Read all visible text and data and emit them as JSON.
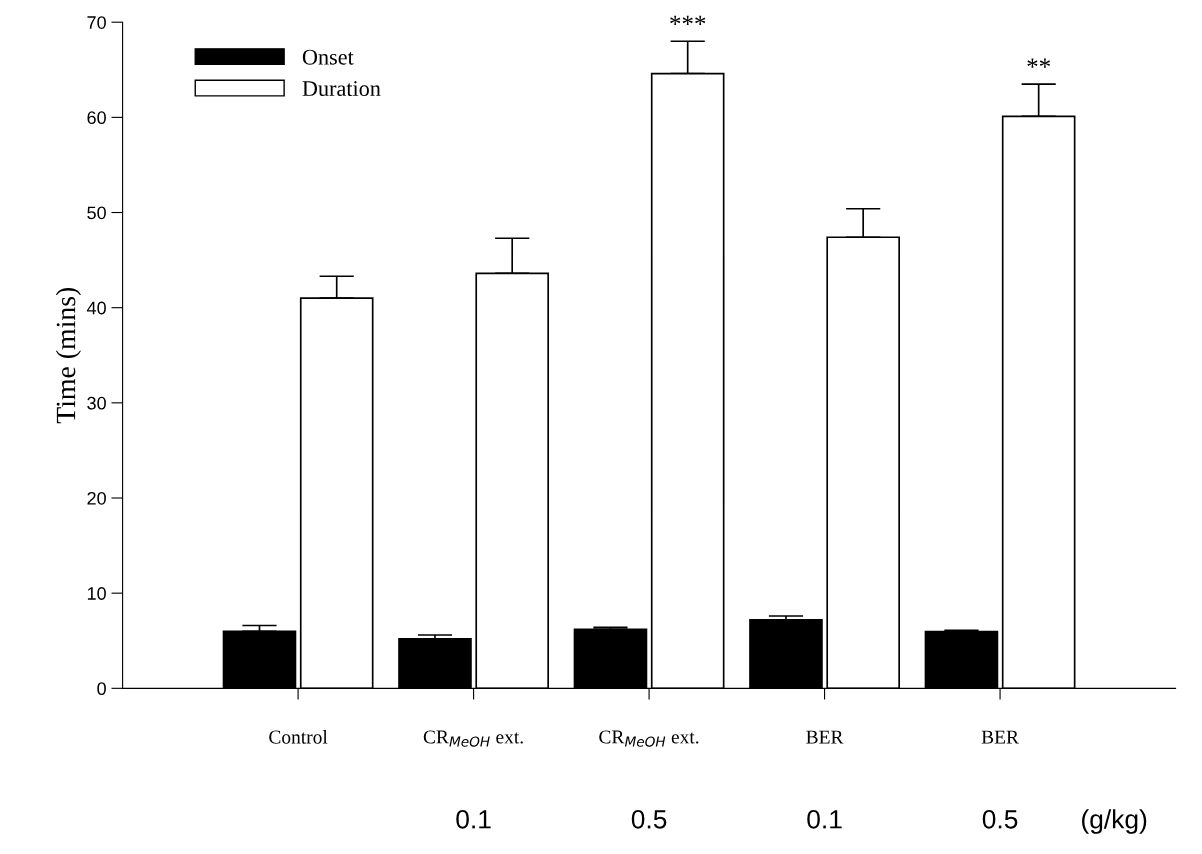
{
  "chart_data": {
    "type": "bar",
    "ylabel": "Time (mins)",
    "categories": [
      "Control",
      "CR$_{MeOH}$ ext.",
      "CR$_{MeOH}$ ext.",
      "BER",
      "BER"
    ],
    "series": [
      {
        "name": "Onset",
        "color": "#000000",
        "values": [
          6.0,
          5.2,
          6.2,
          7.2,
          5.95
        ],
        "errors": [
          [
            6.0,
            6.6
          ],
          [
            5.2,
            5.6
          ],
          [
            6.2,
            6.4
          ],
          [
            7.2,
            7.6
          ],
          [
            5.95,
            6.1
          ]
        ]
      },
      {
        "name": "Duration",
        "color": "#ffffff",
        "values": [
          41.0,
          43.6,
          64.6,
          47.4,
          60.1
        ],
        "errors": [
          [
            41.0,
            43.3
          ],
          [
            43.6,
            47.3
          ],
          [
            64.6,
            68.0
          ],
          [
            47.4,
            50.4
          ],
          [
            60.1,
            63.5
          ]
        ]
      }
    ],
    "ylim": [
      0,
      70
    ],
    "yticks": [
      0,
      10,
      20,
      30,
      40,
      50,
      60,
      70
    ],
    "annotations": [
      "***",
      "**",
      "0.1",
      "0.5",
      "0.1",
      "0.5",
      "(g/kg)"
    ],
    "legend": "top left",
    "grid": false
  }
}
